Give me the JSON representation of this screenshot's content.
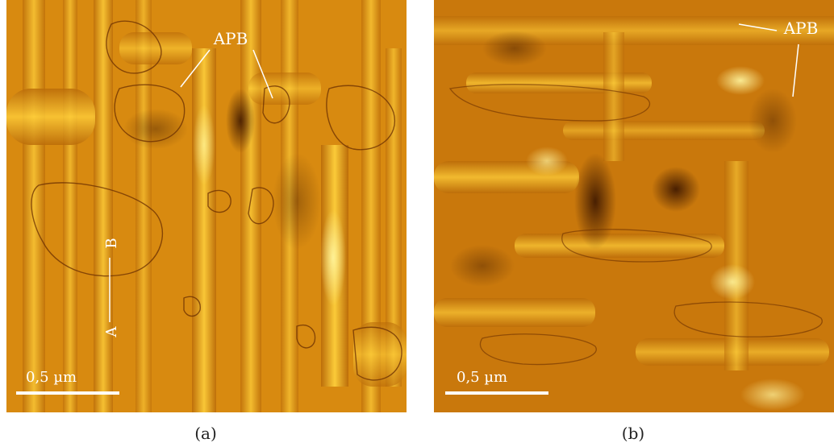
{
  "panels": [
    {
      "id": "a",
      "caption": "(a)",
      "annotation": "APB",
      "scale_bar": "0,5 µm",
      "line_start": "A",
      "line_end": "B"
    },
    {
      "id": "b",
      "caption": "(b)",
      "annotation": "APB",
      "scale_bar": "0,5 µm"
    }
  ],
  "colors": {
    "base": "#d88a10",
    "bright": "#ffd84a",
    "dark": "#7a3a05",
    "label": "#ffffff"
  }
}
